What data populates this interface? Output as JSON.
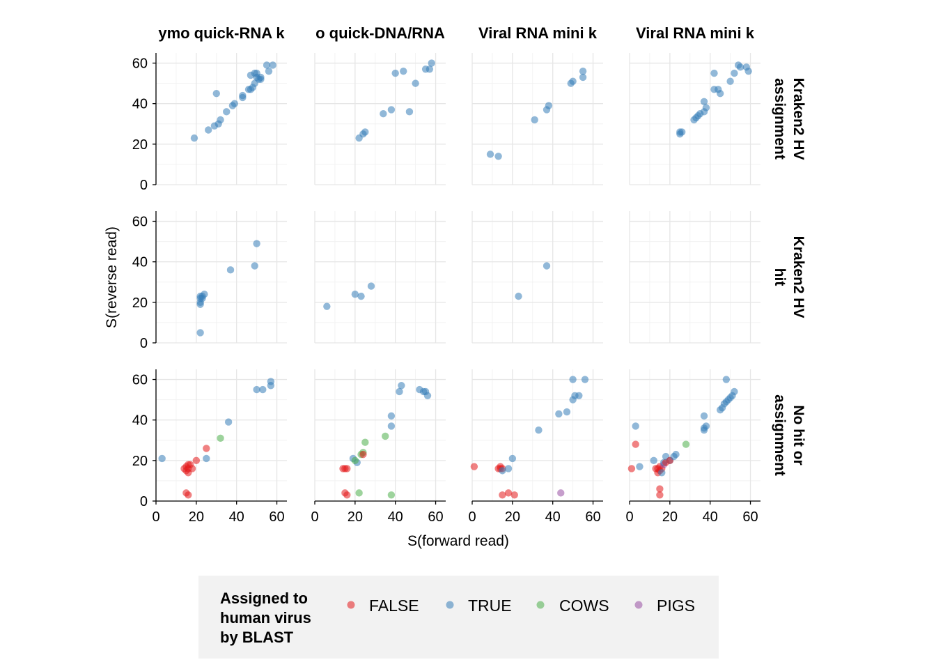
{
  "chart_data": {
    "type": "scatter",
    "xlabel": "S(forward read)",
    "ylabel": "S(reverse read)",
    "xlim": [
      0,
      65
    ],
    "ylim": [
      0,
      65
    ],
    "x_ticks": [
      "0",
      "20",
      "40",
      "60"
    ],
    "y_ticks": [
      "0",
      "20",
      "40",
      "60"
    ],
    "grid": true,
    "columns": [
      "ymo quick-RNA k",
      "o quick-DNA/RNA",
      "Viral RNA mini k",
      "Viral RNA mini k"
    ],
    "rows": [
      [
        "Kraken2 HV",
        "assignment"
      ],
      [
        "Kraken2 HV",
        "hit"
      ],
      [
        "No hit or",
        "assignment"
      ]
    ],
    "legend": {
      "title": [
        "Assigned to",
        "human virus",
        "by BLAST"
      ],
      "placement": "bottom",
      "items": [
        {
          "label": "FALSE",
          "color": "#e41a1c"
        },
        {
          "label": "TRUE",
          "color": "#377eb8"
        },
        {
          "label": "COWS",
          "color": "#4daf4a"
        },
        {
          "label": "PIGS",
          "color": "#984ea3"
        }
      ]
    },
    "panels": [
      {
        "row": 0,
        "col": 0,
        "points": [
          [
            19,
            23,
            "TRUE"
          ],
          [
            26,
            27,
            "TRUE"
          ],
          [
            29,
            29,
            "TRUE"
          ],
          [
            31,
            30,
            "TRUE"
          ],
          [
            32,
            32,
            "TRUE"
          ],
          [
            35,
            36,
            "TRUE"
          ],
          [
            30,
            45,
            "TRUE"
          ],
          [
            38,
            39,
            "TRUE"
          ],
          [
            39,
            40,
            "TRUE"
          ],
          [
            43,
            43,
            "TRUE"
          ],
          [
            43,
            44,
            "TRUE"
          ],
          [
            46,
            47,
            "TRUE"
          ],
          [
            47,
            47,
            "TRUE"
          ],
          [
            48,
            48,
            "TRUE"
          ],
          [
            47,
            54,
            "TRUE"
          ],
          [
            49,
            50,
            "TRUE"
          ],
          [
            49,
            55,
            "TRUE"
          ],
          [
            50,
            55,
            "TRUE"
          ],
          [
            50,
            53,
            "TRUE"
          ],
          [
            51,
            52,
            "TRUE"
          ],
          [
            52,
            53,
            "TRUE"
          ],
          [
            52,
            52,
            "TRUE"
          ],
          [
            55,
            59,
            "TRUE"
          ],
          [
            56,
            56,
            "TRUE"
          ],
          [
            58,
            59,
            "TRUE"
          ]
        ]
      },
      {
        "row": 0,
        "col": 1,
        "points": [
          [
            22,
            23,
            "TRUE"
          ],
          [
            24,
            25,
            "TRUE"
          ],
          [
            25,
            26,
            "TRUE"
          ],
          [
            34,
            35,
            "TRUE"
          ],
          [
            38,
            37,
            "TRUE"
          ],
          [
            40,
            55,
            "TRUE"
          ],
          [
            44,
            56,
            "TRUE"
          ],
          [
            47,
            36,
            "TRUE"
          ],
          [
            50,
            50,
            "TRUE"
          ],
          [
            55,
            57,
            "TRUE"
          ],
          [
            57,
            57,
            "TRUE"
          ],
          [
            58,
            60,
            "TRUE"
          ]
        ]
      },
      {
        "row": 0,
        "col": 2,
        "points": [
          [
            9,
            15,
            "TRUE"
          ],
          [
            13,
            14,
            "TRUE"
          ],
          [
            31,
            32,
            "TRUE"
          ],
          [
            37,
            37,
            "TRUE"
          ],
          [
            38,
            39,
            "TRUE"
          ],
          [
            49,
            50,
            "TRUE"
          ],
          [
            50,
            51,
            "TRUE"
          ],
          [
            55,
            56,
            "TRUE"
          ],
          [
            55,
            53,
            "TRUE"
          ]
        ]
      },
      {
        "row": 0,
        "col": 3,
        "points": [
          [
            25,
            25,
            "TRUE"
          ],
          [
            25,
            26,
            "TRUE"
          ],
          [
            26,
            26,
            "TRUE"
          ],
          [
            32,
            32,
            "TRUE"
          ],
          [
            33,
            33,
            "TRUE"
          ],
          [
            34,
            34,
            "TRUE"
          ],
          [
            35,
            35,
            "TRUE"
          ],
          [
            37,
            36,
            "TRUE"
          ],
          [
            37,
            41,
            "TRUE"
          ],
          [
            38,
            38,
            "TRUE"
          ],
          [
            42,
            55,
            "TRUE"
          ],
          [
            42,
            47,
            "TRUE"
          ],
          [
            44,
            47,
            "TRUE"
          ],
          [
            45,
            45,
            "TRUE"
          ],
          [
            50,
            51,
            "TRUE"
          ],
          [
            52,
            55,
            "TRUE"
          ],
          [
            54,
            59,
            "TRUE"
          ],
          [
            55,
            58,
            "TRUE"
          ],
          [
            58,
            58,
            "TRUE"
          ],
          [
            59,
            56,
            "TRUE"
          ]
        ]
      },
      {
        "row": 1,
        "col": 0,
        "points": [
          [
            22,
            5,
            "TRUE"
          ],
          [
            22,
            19,
            "TRUE"
          ],
          [
            22,
            20,
            "TRUE"
          ],
          [
            22,
            22,
            "TRUE"
          ],
          [
            22,
            23,
            "TRUE"
          ],
          [
            23,
            23,
            "TRUE"
          ],
          [
            23,
            22,
            "TRUE"
          ],
          [
            24,
            24,
            "TRUE"
          ],
          [
            37,
            36,
            "TRUE"
          ],
          [
            49,
            38,
            "TRUE"
          ],
          [
            50,
            49,
            "TRUE"
          ]
        ]
      },
      {
        "row": 1,
        "col": 1,
        "points": [
          [
            6,
            18,
            "TRUE"
          ],
          [
            20,
            24,
            "TRUE"
          ],
          [
            23,
            23,
            "TRUE"
          ],
          [
            28,
            28,
            "TRUE"
          ]
        ]
      },
      {
        "row": 1,
        "col": 2,
        "points": [
          [
            23,
            23,
            "TRUE"
          ],
          [
            37,
            38,
            "TRUE"
          ]
        ]
      },
      {
        "row": 1,
        "col": 3,
        "points": []
      },
      {
        "row": 2,
        "col": 0,
        "points": [
          [
            3,
            21,
            "TRUE"
          ],
          [
            14,
            16,
            "FALSE"
          ],
          [
            15,
            17,
            "FALSE"
          ],
          [
            15,
            15,
            "FALSE"
          ],
          [
            16,
            16,
            "FALSE"
          ],
          [
            16,
            14,
            "FALSE"
          ],
          [
            17,
            18,
            "FALSE"
          ],
          [
            18,
            16,
            "FALSE"
          ],
          [
            16,
            18,
            "FALSE"
          ],
          [
            15,
            4,
            "FALSE"
          ],
          [
            16,
            3,
            "FALSE"
          ],
          [
            20,
            20,
            "FALSE"
          ],
          [
            25,
            26,
            "FALSE"
          ],
          [
            25,
            21,
            "TRUE"
          ],
          [
            32,
            31,
            "COWS"
          ],
          [
            36,
            39,
            "TRUE"
          ],
          [
            50,
            55,
            "TRUE"
          ],
          [
            53,
            55,
            "TRUE"
          ],
          [
            57,
            57,
            "TRUE"
          ],
          [
            57,
            59,
            "TRUE"
          ]
        ]
      },
      {
        "row": 2,
        "col": 1,
        "points": [
          [
            14,
            16,
            "FALSE"
          ],
          [
            15,
            16,
            "FALSE"
          ],
          [
            16,
            16,
            "FALSE"
          ],
          [
            15,
            4,
            "FALSE"
          ],
          [
            16,
            3,
            "FALSE"
          ],
          [
            19,
            21,
            "TRUE"
          ],
          [
            21,
            19,
            "TRUE"
          ],
          [
            20,
            20,
            "COWS"
          ],
          [
            22,
            4,
            "COWS"
          ],
          [
            23,
            23,
            "COWS"
          ],
          [
            24,
            24,
            "COWS"
          ],
          [
            24,
            23,
            "FALSE"
          ],
          [
            25,
            29,
            "COWS"
          ],
          [
            35,
            32,
            "COWS"
          ],
          [
            38,
            42,
            "TRUE"
          ],
          [
            38,
            37,
            "TRUE"
          ],
          [
            38,
            3,
            "COWS"
          ],
          [
            42,
            54,
            "TRUE"
          ],
          [
            43,
            57,
            "TRUE"
          ],
          [
            52,
            55,
            "TRUE"
          ],
          [
            54,
            54,
            "TRUE"
          ],
          [
            55,
            54,
            "TRUE"
          ],
          [
            56,
            52,
            "TRUE"
          ]
        ]
      },
      {
        "row": 2,
        "col": 2,
        "points": [
          [
            1,
            17,
            "FALSE"
          ],
          [
            13,
            16,
            "FALSE"
          ],
          [
            14,
            16,
            "FALSE"
          ],
          [
            14,
            17,
            "FALSE"
          ],
          [
            15,
            16,
            "FALSE"
          ],
          [
            15,
            15,
            "TRUE"
          ],
          [
            18,
            16,
            "TRUE"
          ],
          [
            15,
            3,
            "FALSE"
          ],
          [
            18,
            4,
            "FALSE"
          ],
          [
            21,
            3,
            "FALSE"
          ],
          [
            20,
            21,
            "TRUE"
          ],
          [
            33,
            35,
            "TRUE"
          ],
          [
            43,
            43,
            "TRUE"
          ],
          [
            47,
            44,
            "TRUE"
          ],
          [
            50,
            50,
            "TRUE"
          ],
          [
            51,
            52,
            "TRUE"
          ],
          [
            53,
            52,
            "TRUE"
          ],
          [
            50,
            60,
            "TRUE"
          ],
          [
            56,
            60,
            "TRUE"
          ],
          [
            44,
            4,
            "PIGS"
          ]
        ]
      },
      {
        "row": 2,
        "col": 3,
        "points": [
          [
            1,
            16,
            "FALSE"
          ],
          [
            3,
            28,
            "FALSE"
          ],
          [
            3,
            37,
            "TRUE"
          ],
          [
            5,
            17,
            "TRUE"
          ],
          [
            12,
            20,
            "TRUE"
          ],
          [
            13,
            16,
            "FALSE"
          ],
          [
            14,
            14,
            "FALSE"
          ],
          [
            14,
            16,
            "FALSE"
          ],
          [
            15,
            15,
            "FALSE"
          ],
          [
            15,
            17,
            "FALSE"
          ],
          [
            16,
            16,
            "FALSE"
          ],
          [
            16,
            14,
            "TRUE"
          ],
          [
            17,
            18,
            "PIGS"
          ],
          [
            17,
            19,
            "TRUE"
          ],
          [
            18,
            19,
            "FALSE"
          ],
          [
            18,
            22,
            "TRUE"
          ],
          [
            20,
            20,
            "TRUE"
          ],
          [
            20,
            20,
            "FALSE"
          ],
          [
            22,
            22,
            "TRUE"
          ],
          [
            23,
            23,
            "TRUE"
          ],
          [
            15,
            6,
            "FALSE"
          ],
          [
            15,
            3,
            "FALSE"
          ],
          [
            28,
            28,
            "COWS"
          ],
          [
            37,
            36,
            "TRUE"
          ],
          [
            37,
            35,
            "TRUE"
          ],
          [
            37,
            42,
            "TRUE"
          ],
          [
            38,
            37,
            "TRUE"
          ],
          [
            45,
            45,
            "TRUE"
          ],
          [
            46,
            46,
            "TRUE"
          ],
          [
            47,
            48,
            "TRUE"
          ],
          [
            48,
            49,
            "TRUE"
          ],
          [
            49,
            50,
            "TRUE"
          ],
          [
            50,
            51,
            "TRUE"
          ],
          [
            51,
            52,
            "TRUE"
          ],
          [
            52,
            54,
            "TRUE"
          ],
          [
            48,
            60,
            "TRUE"
          ]
        ]
      }
    ]
  }
}
